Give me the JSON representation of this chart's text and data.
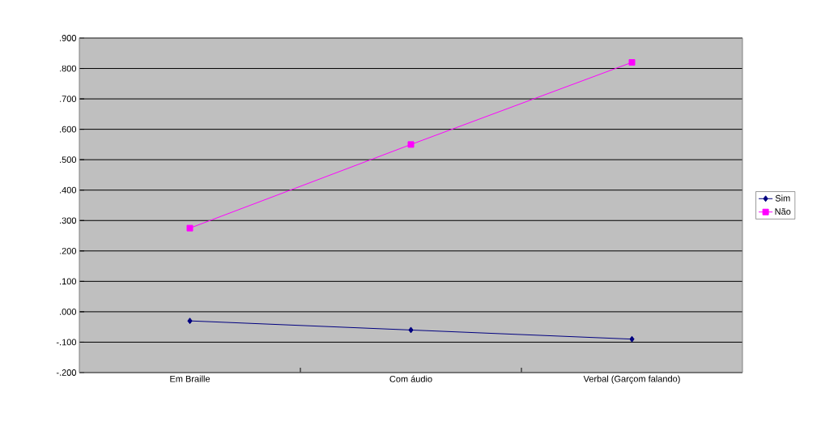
{
  "chart_data": {
    "type": "line",
    "categories": [
      "Em Braille",
      "Com áudio",
      "Verbal (Garçom falando)"
    ],
    "series": [
      {
        "name": "Sim",
        "color": "#000080",
        "marker": "diamond",
        "values": [
          -0.03,
          -0.06,
          -0.09
        ]
      },
      {
        "name": "Não",
        "color": "#ff00ff",
        "marker": "square",
        "values": [
          0.275,
          0.55,
          0.82
        ]
      }
    ],
    "ylim": [
      -0.2,
      0.9
    ],
    "yticks": [
      {
        "value": -0.2,
        "label": "-.200"
      },
      {
        "value": -0.1,
        "label": "-.100"
      },
      {
        "value": 0,
        "label": ".000"
      },
      {
        "value": 0.1,
        "label": ".100"
      },
      {
        "value": 0.2,
        "label": ".200"
      },
      {
        "value": 0.3,
        "label": ".300"
      },
      {
        "value": 0.4,
        "label": ".400"
      },
      {
        "value": 0.5,
        "label": ".500"
      },
      {
        "value": 0.6,
        "label": ".600"
      },
      {
        "value": 0.7,
        "label": ".700"
      },
      {
        "value": 0.8,
        "label": ".800"
      },
      {
        "value": 0.9,
        "label": ".900"
      }
    ],
    "grid": "y",
    "legend": "right"
  }
}
